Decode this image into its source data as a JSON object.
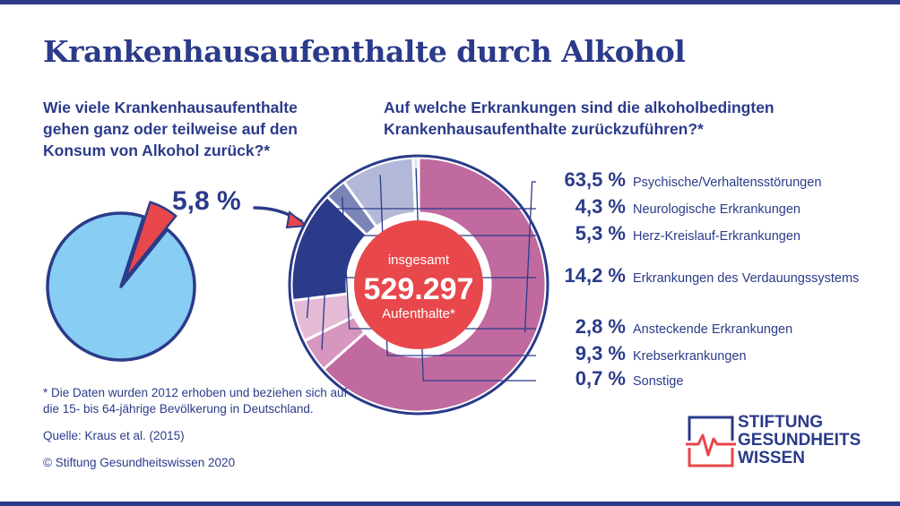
{
  "title": "Krankenhausaufenthalte durch Alkohol",
  "question_left": "Wie viele Krankenhausaufenthalte gehen ganz oder teilweise auf den Konsum von Alkohol zurück?*",
  "question_right": "Auf welche Erkrankungen sind die alkoholbedingten Krankenhausaufenthalte zurückzuführen?*",
  "center": {
    "label_top": "insgesamt",
    "value": "529.297",
    "label_bottom": "Aufenthalte*"
  },
  "footnote": "* Die Daten wurden 2012 erhoben und beziehen sich auf die 15- bis 64-jährige Bevölkerung in Deutschland.",
  "source": "Quelle: Kraus et al. (2015)",
  "copyright": "© Stiftung Gesundheitswissen 2020",
  "logo": {
    "line1": "STIFTUNG",
    "line2": "GESUNDHEITS",
    "line3": "WISSEN"
  },
  "colors": {
    "navy": "#2b3b8a",
    "light_blue": "#88cdf3",
    "red": "#e8474b",
    "magenta": "#c06a9f"
  },
  "chart_data": [
    {
      "type": "pie",
      "value_label": "5,8 %",
      "slices": [
        {
          "value": 5.8,
          "color": "#e8474b",
          "highlighted": true
        },
        {
          "value": 94.2,
          "color": "#88cdf3"
        }
      ]
    },
    {
      "type": "pie",
      "style": "donut",
      "total": 529297,
      "slices": [
        {
          "label": "Psychische/Verhaltensstörungen",
          "value": 63.5,
          "value_label": "63,5 %",
          "color": "#c06a9f"
        },
        {
          "label": "Neurologische Erkrankungen",
          "value": 4.3,
          "value_label": "4,3 %",
          "color": "#d796bd"
        },
        {
          "label": "Herz-Kreislauf-Erkrankungen",
          "value": 5.3,
          "value_label": "5,3 %",
          "color": "#e5bbd6"
        },
        {
          "label": "Erkrankungen des Verdauungssystems",
          "value": 14.2,
          "value_label": "14,2 %",
          "color": "#2b3b8a"
        },
        {
          "label": "Ansteckende Erkrankungen",
          "value": 2.8,
          "value_label": "2,8 %",
          "color": "#7a84b6"
        },
        {
          "label": "Krebserkrankungen",
          "value": 9.3,
          "value_label": "9,3 %",
          "color": "#b4b8d8"
        },
        {
          "label": "Sonstige",
          "value": 0.7,
          "value_label": "0,7 %",
          "color": "#dfe1ef"
        }
      ]
    }
  ]
}
